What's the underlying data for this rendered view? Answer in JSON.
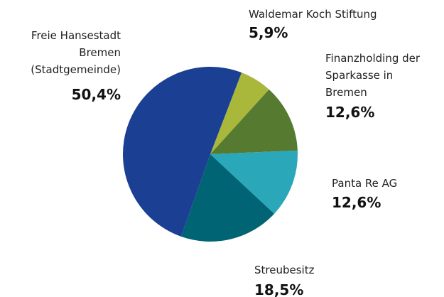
{
  "chart_data": {
    "type": "pie",
    "categories": [
      "Waldemar Koch Stiftung",
      "Finanzholding der\nSparkasse in\nBremen",
      "Panta Re AG",
      "Streubesitz",
      "Freie Hansestadt\nBremen\n(Stadtgemeinde)"
    ],
    "values": [
      5.9,
      12.6,
      12.6,
      18.5,
      50.4
    ],
    "value_labels": [
      "5,9%",
      "12,6%",
      "12,6%",
      "18,5%",
      "50,4%"
    ],
    "colors": [
      "#a9b83b",
      "#557a30",
      "#2aa7b8",
      "#016474",
      "#1a3f93"
    ]
  }
}
